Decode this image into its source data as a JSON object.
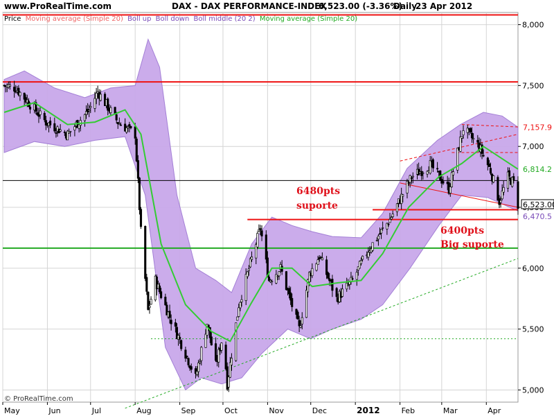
{
  "header": {
    "site": "www.ProRealTime.com",
    "title": "DAX - DAX PERFORMANCE-INDEX",
    "quote": "6,523.00 (-3.36%)",
    "period": "Daily",
    "date": "23 Apr 2012"
  },
  "legend": {
    "price": "Price",
    "ma_label": "Moving average (Simple 20)",
    "boll_up": "Boll up",
    "boll_down": "Boll down",
    "boll_middle": "Boll middle (20 2)",
    "ma2_label": "Moving average (Simple 20)"
  },
  "footer": {
    "copyright": "© ProRealTime.com"
  },
  "colors": {
    "band_fill": "#c9a8ea",
    "band_stroke": "#9f79d4",
    "ma": "#33cc33",
    "resistance": "#ee1111",
    "support_green": "#22aa22",
    "candle": "#000000",
    "grid": "#d4d4d4",
    "annotation": "#e0101a"
  },
  "chart_data": {
    "type": "candlestick",
    "title": "DAX - DAX PERFORMANCE-INDEX",
    "period": "Daily",
    "x_range": [
      "2011-05-01",
      "2012-04-23"
    ],
    "y_range": [
      4900,
      8100
    ],
    "y_ticks": [
      {
        "value": 5000,
        "label": "5,000"
      },
      {
        "value": 5500,
        "label": "5,500"
      },
      {
        "value": 6000,
        "label": "6,000"
      },
      {
        "value": 6500,
        "label": "6,500"
      },
      {
        "value": 7000,
        "label": "7,000"
      },
      {
        "value": 7500,
        "label": "7,500"
      },
      {
        "value": 8000,
        "label": "8,000"
      }
    ],
    "x_ticks": [
      {
        "date": "2011-05-01",
        "label": "May"
      },
      {
        "date": "2011-06-01",
        "label": "Jun"
      },
      {
        "date": "2011-07-01",
        "label": "Jul"
      },
      {
        "date": "2011-08-01",
        "label": "Aug"
      },
      {
        "date": "2011-09-01",
        "label": "Sep"
      },
      {
        "date": "2011-10-01",
        "label": "Oct"
      },
      {
        "date": "2011-11-01",
        "label": "Nov"
      },
      {
        "date": "2011-12-01",
        "label": "Dec"
      },
      {
        "date": "2012-01-01",
        "label": "2012",
        "bold": true
      },
      {
        "date": "2012-02-01",
        "label": "Feb"
      },
      {
        "date": "2012-03-01",
        "label": "Mar"
      },
      {
        "date": "2012-04-01",
        "label": "Apr"
      }
    ],
    "key_points": [
      {
        "date": "2011-05-02",
        "close": 7500
      },
      {
        "date": "2011-05-10",
        "close": 7480
      },
      {
        "date": "2011-05-31",
        "close": 7200
      },
      {
        "date": "2011-06-15",
        "close": 7100
      },
      {
        "date": "2011-06-30",
        "close": 7300
      },
      {
        "date": "2011-07-06",
        "close": 7450
      },
      {
        "date": "2011-07-20",
        "close": 7200
      },
      {
        "date": "2011-08-01",
        "close": 7100
      },
      {
        "date": "2011-08-05",
        "close": 6300
      },
      {
        "date": "2011-08-10",
        "close": 5650
      },
      {
        "date": "2011-08-15",
        "close": 5900
      },
      {
        "date": "2011-08-25",
        "close": 5600
      },
      {
        "date": "2011-09-05",
        "close": 5300
      },
      {
        "date": "2011-09-12",
        "close": 5100
      },
      {
        "date": "2011-09-20",
        "close": 5550
      },
      {
        "date": "2011-09-26",
        "close": 5200
      },
      {
        "date": "2011-10-01",
        "close": 5450
      },
      {
        "date": "2011-10-04",
        "close": 5050
      },
      {
        "date": "2011-10-12",
        "close": 5700
      },
      {
        "date": "2011-10-27",
        "close": 6330
      },
      {
        "date": "2011-11-02",
        "close": 5900
      },
      {
        "date": "2011-11-10",
        "close": 6000
      },
      {
        "date": "2011-11-23",
        "close": 5500
      },
      {
        "date": "2011-11-30",
        "close": 5950
      },
      {
        "date": "2011-12-07",
        "close": 6100
      },
      {
        "date": "2011-12-19",
        "close": 5750
      },
      {
        "date": "2011-12-30",
        "close": 5900
      },
      {
        "date": "2012-01-10",
        "close": 6150
      },
      {
        "date": "2012-01-25",
        "close": 6400
      },
      {
        "date": "2012-02-09",
        "close": 6750
      },
      {
        "date": "2012-02-22",
        "close": 6850
      },
      {
        "date": "2012-03-06",
        "close": 6650
      },
      {
        "date": "2012-03-16",
        "close": 7150
      },
      {
        "date": "2012-03-27",
        "close": 7000
      },
      {
        "date": "2012-04-04",
        "close": 6800
      },
      {
        "date": "2012-04-10",
        "close": 6550
      },
      {
        "date": "2012-04-16",
        "close": 6750
      },
      {
        "date": "2012-04-20",
        "close": 6700
      },
      {
        "date": "2012-04-23",
        "close": 6523
      }
    ],
    "moving_average_points": [
      {
        "date": "2011-05-02",
        "value": 7280
      },
      {
        "date": "2011-05-23",
        "value": 7360
      },
      {
        "date": "2011-06-15",
        "value": 7180
      },
      {
        "date": "2011-07-04",
        "value": 7200
      },
      {
        "date": "2011-07-25",
        "value": 7300
      },
      {
        "date": "2011-08-05",
        "value": 7100
      },
      {
        "date": "2011-08-19",
        "value": 6200
      },
      {
        "date": "2011-09-05",
        "value": 5700
      },
      {
        "date": "2011-09-23",
        "value": 5480
      },
      {
        "date": "2011-10-06",
        "value": 5400
      },
      {
        "date": "2011-10-20",
        "value": 5700
      },
      {
        "date": "2011-11-04",
        "value": 6000
      },
      {
        "date": "2011-11-18",
        "value": 6000
      },
      {
        "date": "2011-12-02",
        "value": 5850
      },
      {
        "date": "2011-12-20",
        "value": 5880
      },
      {
        "date": "2012-01-05",
        "value": 5900
      },
      {
        "date": "2012-01-20",
        "value": 6120
      },
      {
        "date": "2012-02-07",
        "value": 6500
      },
      {
        "date": "2012-02-28",
        "value": 6750
      },
      {
        "date": "2012-03-15",
        "value": 6860
      },
      {
        "date": "2012-03-30",
        "value": 7000
      },
      {
        "date": "2012-04-23",
        "value": 6814
      }
    ],
    "bollinger_upper_points": [
      {
        "date": "2011-05-02",
        "value": 7550
      },
      {
        "date": "2011-05-16",
        "value": 7620
      },
      {
        "date": "2011-06-06",
        "value": 7480
      },
      {
        "date": "2011-06-27",
        "value": 7400
      },
      {
        "date": "2011-07-15",
        "value": 7480
      },
      {
        "date": "2011-08-01",
        "value": 7500
      },
      {
        "date": "2011-08-10",
        "value": 7880
      },
      {
        "date": "2011-08-18",
        "value": 7650
      },
      {
        "date": "2011-08-30",
        "value": 6600
      },
      {
        "date": "2011-09-12",
        "value": 6000
      },
      {
        "date": "2011-09-26",
        "value": 5900
      },
      {
        "date": "2011-10-07",
        "value": 5800
      },
      {
        "date": "2011-10-21",
        "value": 6200
      },
      {
        "date": "2011-11-04",
        "value": 6420
      },
      {
        "date": "2011-11-18",
        "value": 6350
      },
      {
        "date": "2011-12-02",
        "value": 6300
      },
      {
        "date": "2011-12-16",
        "value": 6260
      },
      {
        "date": "2012-01-05",
        "value": 6250
      },
      {
        "date": "2012-01-20",
        "value": 6450
      },
      {
        "date": "2012-02-06",
        "value": 6820
      },
      {
        "date": "2012-02-27",
        "value": 7050
      },
      {
        "date": "2012-03-14",
        "value": 7180
      },
      {
        "date": "2012-03-30",
        "value": 7280
      },
      {
        "date": "2012-04-12",
        "value": 7250
      },
      {
        "date": "2012-04-23",
        "value": 7158
      }
    ],
    "bollinger_lower_points": [
      {
        "date": "2011-05-02",
        "value": 6950
      },
      {
        "date": "2011-05-23",
        "value": 7040
      },
      {
        "date": "2011-06-13",
        "value": 7000
      },
      {
        "date": "2011-07-04",
        "value": 7050
      },
      {
        "date": "2011-07-25",
        "value": 7080
      },
      {
        "date": "2011-08-08",
        "value": 6600
      },
      {
        "date": "2011-08-22",
        "value": 5350
      },
      {
        "date": "2011-09-05",
        "value": 5000
      },
      {
        "date": "2011-09-16",
        "value": 5100
      },
      {
        "date": "2011-09-30",
        "value": 5050
      },
      {
        "date": "2011-10-14",
        "value": 5100
      },
      {
        "date": "2011-10-28",
        "value": 5300
      },
      {
        "date": "2011-11-15",
        "value": 5500
      },
      {
        "date": "2011-12-01",
        "value": 5420
      },
      {
        "date": "2011-12-16",
        "value": 5500
      },
      {
        "date": "2012-01-05",
        "value": 5580
      },
      {
        "date": "2012-01-20",
        "value": 5700
      },
      {
        "date": "2012-02-08",
        "value": 6000
      },
      {
        "date": "2012-02-28",
        "value": 6350
      },
      {
        "date": "2012-03-15",
        "value": 6600
      },
      {
        "date": "2012-04-02",
        "value": 6580
      },
      {
        "date": "2012-04-23",
        "value": 6470
      }
    ],
    "horizontal_levels": [
      {
        "value": 8080,
        "color": "#ee1111",
        "style": "solid"
      },
      {
        "value": 7530,
        "color": "#ee1111",
        "style": "solid"
      },
      {
        "value": 6720,
        "color": "#000000",
        "style": "solid",
        "thin": true
      },
      {
        "value": 6480,
        "color": "#ee1111",
        "style": "solid"
      },
      {
        "value": 6400,
        "color": "#ee1111",
        "style": "solid"
      },
      {
        "value": 6165,
        "color": "#22aa22",
        "style": "solid"
      },
      {
        "value": 5420,
        "color": "#22aa22",
        "style": "dotted"
      }
    ],
    "annotations": [
      {
        "lines": [
          "6480pts",
          "suporte"
        ]
      },
      {
        "lines": [
          "6400pts",
          "Big suporte"
        ]
      }
    ],
    "right_axis_labels": [
      {
        "value": 7157.9,
        "label": "7,157.9",
        "color": "#ee1111"
      },
      {
        "value": 6814.2,
        "label": "6,814.2",
        "color": "#22aa22"
      },
      {
        "value": 6523.0,
        "label": "6,523.00",
        "color": "#000000",
        "boxed": true
      },
      {
        "value": 6470.5,
        "label": "6,470.5",
        "color": "#7a4cb8"
      }
    ]
  }
}
